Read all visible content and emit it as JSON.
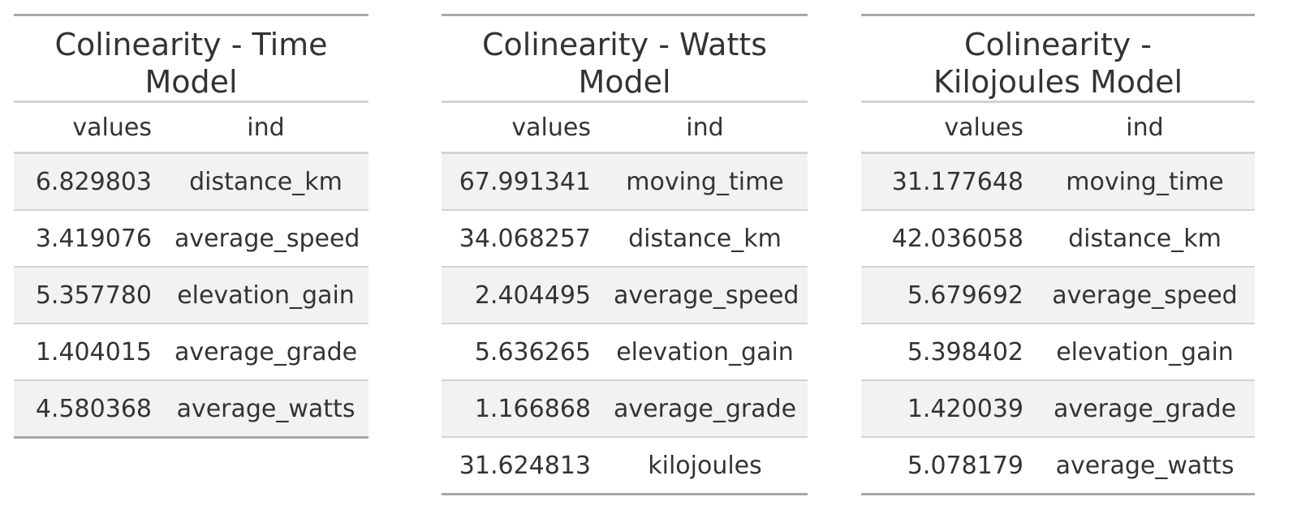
{
  "tables": [
    {
      "title": "Colinearity - Time Model",
      "columns": [
        "values",
        "ind"
      ],
      "rows": [
        [
          "6.829803",
          "distance_km"
        ],
        [
          "3.419076",
          "average_speed"
        ],
        [
          "5.357780",
          "elevation_gain"
        ],
        [
          "1.404015",
          "average_grade"
        ],
        [
          "4.580368",
          "average_watts"
        ]
      ]
    },
    {
      "title": "Colinearity - Watts Model",
      "columns": [
        "values",
        "ind"
      ],
      "rows": [
        [
          "67.991341",
          "moving_time"
        ],
        [
          "34.068257",
          "distance_km"
        ],
        [
          "2.404495",
          "average_speed"
        ],
        [
          "5.636265",
          "elevation_gain"
        ],
        [
          "1.166868",
          "average_grade"
        ],
        [
          "31.624813",
          "kilojoules"
        ]
      ]
    },
    {
      "title": "Colinearity - Kilojoules Model",
      "columns": [
        "values",
        "ind"
      ],
      "rows": [
        [
          "31.177648",
          "moving_time"
        ],
        [
          "42.036058",
          "distance_km"
        ],
        [
          "5.679692",
          "average_speed"
        ],
        [
          "5.398402",
          "elevation_gain"
        ],
        [
          "1.420039",
          "average_grade"
        ],
        [
          "5.078179",
          "average_watts"
        ]
      ]
    }
  ]
}
